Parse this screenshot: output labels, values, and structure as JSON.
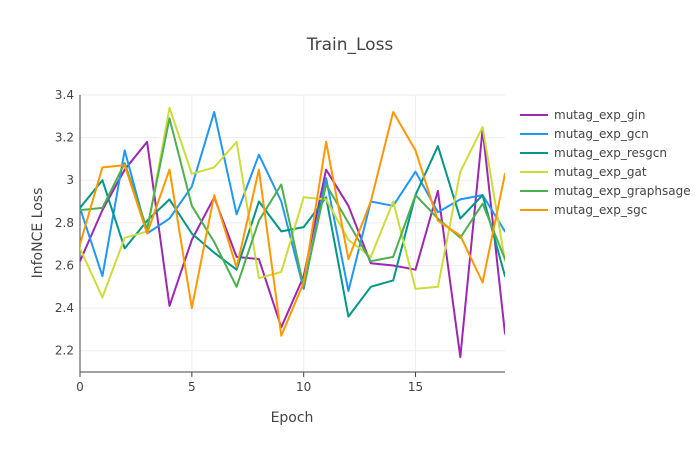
{
  "chart_data": {
    "type": "line",
    "title": "Train_Loss",
    "xlabel": "Epoch",
    "ylabel": "InfoNCE Loss",
    "xlim": [
      0,
      19
    ],
    "ylim": [
      2.1,
      3.4
    ],
    "xticks": [
      0,
      5,
      10,
      15
    ],
    "yticks": [
      2.2,
      2.4,
      2.6,
      2.8,
      3.0,
      3.2,
      3.4
    ],
    "ytick_labels": [
      "2.2",
      "2.4",
      "2.6",
      "2.8",
      "3",
      "3.2",
      "3.4"
    ],
    "grid": true,
    "legend_position": "right",
    "x": [
      0,
      1,
      2,
      3,
      4,
      5,
      6,
      7,
      8,
      9,
      10,
      11,
      12,
      13,
      14,
      15,
      16,
      17,
      18,
      19
    ],
    "series": [
      {
        "name": "mutag_exp_gin",
        "color": "#9c27b0",
        "values": [
          2.62,
          2.86,
          3.05,
          3.18,
          2.41,
          2.72,
          2.92,
          2.64,
          2.63,
          2.31,
          2.55,
          3.05,
          2.88,
          2.61,
          2.6,
          2.58,
          2.95,
          2.17,
          3.24,
          2.28
        ]
      },
      {
        "name": "mutag_exp_gcn",
        "color": "#2196f3",
        "values": [
          2.87,
          2.55,
          3.14,
          2.75,
          2.82,
          2.97,
          3.32,
          2.84,
          3.12,
          2.9,
          2.49,
          3.01,
          2.48,
          2.9,
          2.88,
          3.04,
          2.85,
          2.91,
          2.93,
          2.76
        ]
      },
      {
        "name": "mutag_exp_resgcn",
        "color": "#009688",
        "values": [
          2.87,
          3.0,
          2.68,
          2.81,
          2.91,
          2.75,
          2.66,
          2.58,
          2.9,
          2.76,
          2.78,
          2.92,
          2.36,
          2.5,
          2.53,
          2.93,
          3.16,
          2.82,
          2.93,
          2.55
        ]
      },
      {
        "name": "mutag_exp_gat",
        "color": "#cddc39",
        "values": [
          2.68,
          2.45,
          2.73,
          2.76,
          3.34,
          3.03,
          3.06,
          3.18,
          2.54,
          2.57,
          2.92,
          2.91,
          2.72,
          2.64,
          2.9,
          2.49,
          2.5,
          3.04,
          3.25,
          2.62
        ]
      },
      {
        "name": "mutag_exp_graphsage",
        "color": "#4caf50",
        "values": [
          2.86,
          2.87,
          3.08,
          2.77,
          3.29,
          2.88,
          2.71,
          2.5,
          2.81,
          2.98,
          2.5,
          2.98,
          2.8,
          2.62,
          2.64,
          2.93,
          2.82,
          2.73,
          2.89,
          2.63
        ]
      },
      {
        "name": "mutag_exp_sgc",
        "color": "#ff9800",
        "values": [
          2.7,
          3.06,
          3.07,
          2.75,
          3.05,
          2.4,
          2.93,
          2.59,
          3.05,
          2.27,
          2.52,
          3.18,
          2.63,
          2.9,
          3.32,
          3.14,
          2.81,
          2.74,
          2.52,
          3.03
        ]
      }
    ]
  }
}
